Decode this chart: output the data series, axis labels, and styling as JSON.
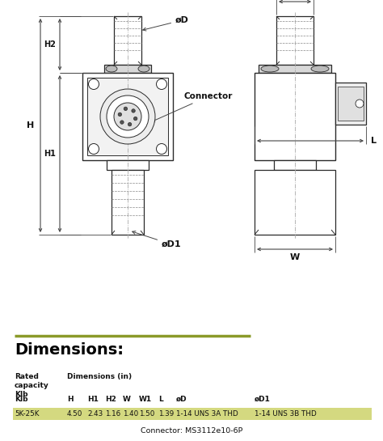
{
  "dimensions_title": "Dimensions:",
  "table_row": [
    "5K-25K",
    "4.50",
    "2.43",
    "1.16",
    "1.40",
    "1.50",
    "1.39",
    "1-14 UNS 3A THD",
    "1-14 UNS 3B THD"
  ],
  "connector_note": "Connector: MS3112e10-6P",
  "olive_color": "#8B9A2A",
  "highlight_color": "#d4d980",
  "line_color": "#2a2a2a",
  "dim_line_color": "#444444",
  "text_color": "#111111",
  "bg_color": "#ffffff"
}
